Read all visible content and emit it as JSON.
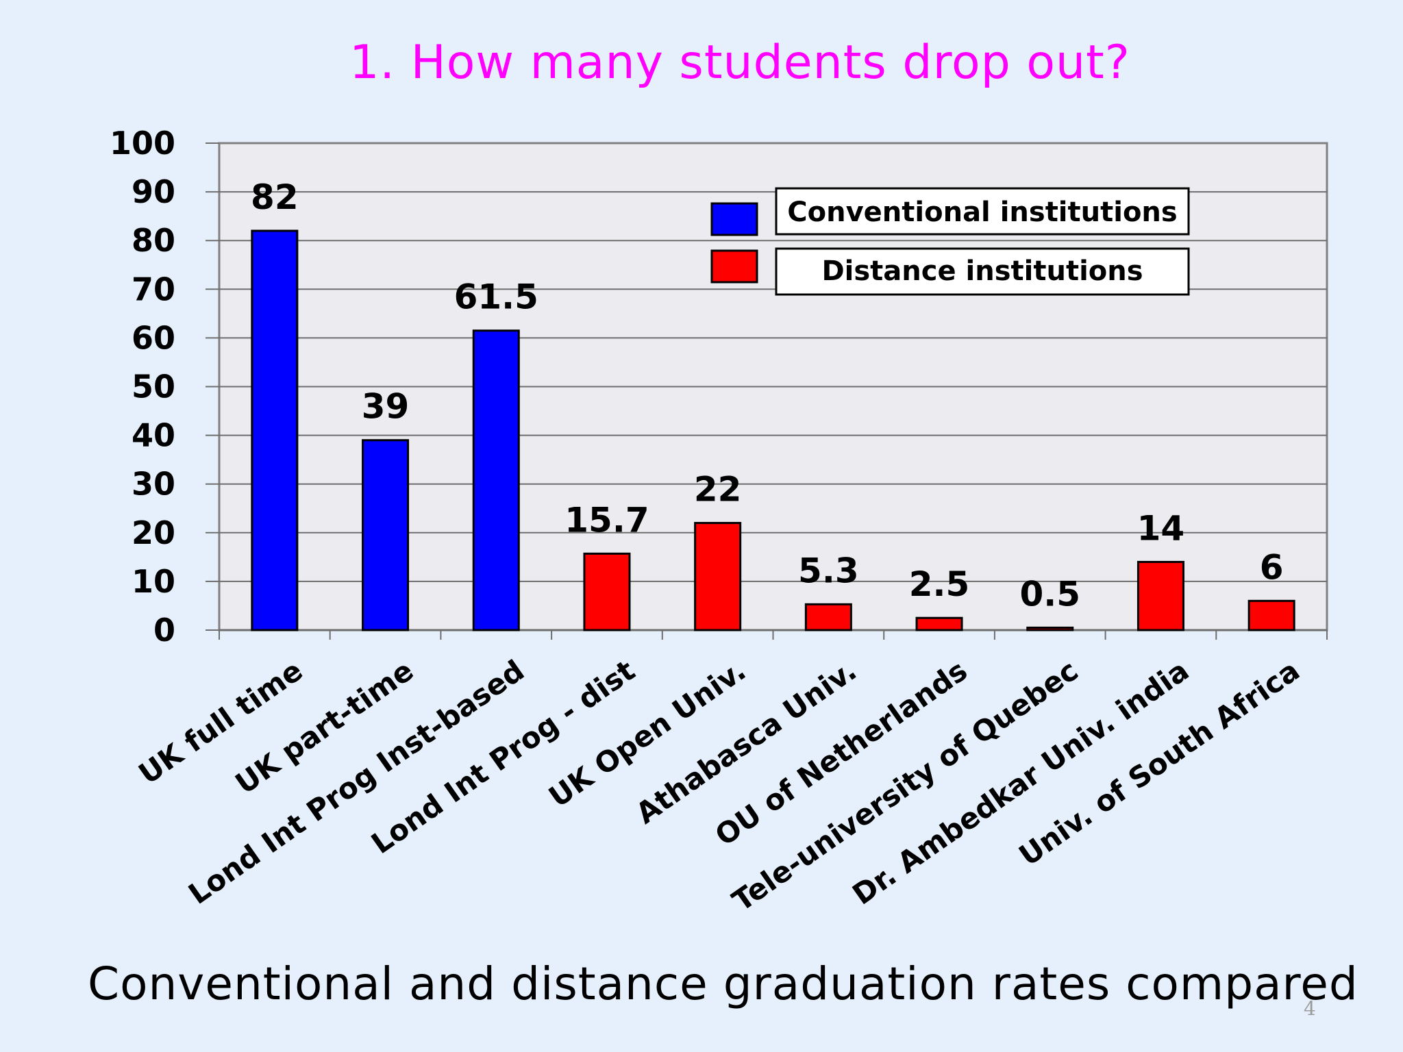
{
  "slide": {
    "title": "1. How many students drop out?",
    "subtitle": "Conventional and distance graduation rates compared",
    "page_number": "4"
  },
  "colors": {
    "background": "#e6f0fc",
    "plot_area": "#ebebf0",
    "title": "#ff00ff",
    "conventional": "#0000ff",
    "distance": "#ff0000"
  },
  "chart_data": {
    "type": "bar",
    "title": "",
    "xlabel": "",
    "ylabel": "",
    "ylim": [
      0,
      100
    ],
    "yticks": [
      0,
      10,
      20,
      30,
      40,
      50,
      60,
      70,
      80,
      90,
      100
    ],
    "grid": true,
    "legend_position": "top-right",
    "categories": [
      "UK full time",
      "UK part-time",
      "Lond Int Prog Inst-based",
      "Lond Int Prog - dist",
      "UK Open Univ.",
      "Athabasca Univ.",
      "OU of Netherlands",
      "Tele-university of Quebec",
      "Dr. Ambedkar Univ. india",
      "Univ. of South Africa"
    ],
    "values": [
      82,
      39,
      61.5,
      15.7,
      22,
      5.3,
      2.5,
      0.5,
      14,
      6
    ],
    "data_labels": [
      "82",
      "39",
      "61.5",
      "15.7",
      "22",
      "5.3",
      "2.5",
      "0.5",
      "14",
      "6"
    ],
    "groups": [
      "conventional",
      "conventional",
      "conventional",
      "distance",
      "distance",
      "distance",
      "distance",
      "distance",
      "distance",
      "distance"
    ],
    "series": [
      {
        "name": "Conventional institutions",
        "key": "conventional",
        "color": "#0000ff"
      },
      {
        "name": "Distance institutions",
        "key": "distance",
        "color": "#ff0000"
      }
    ]
  }
}
